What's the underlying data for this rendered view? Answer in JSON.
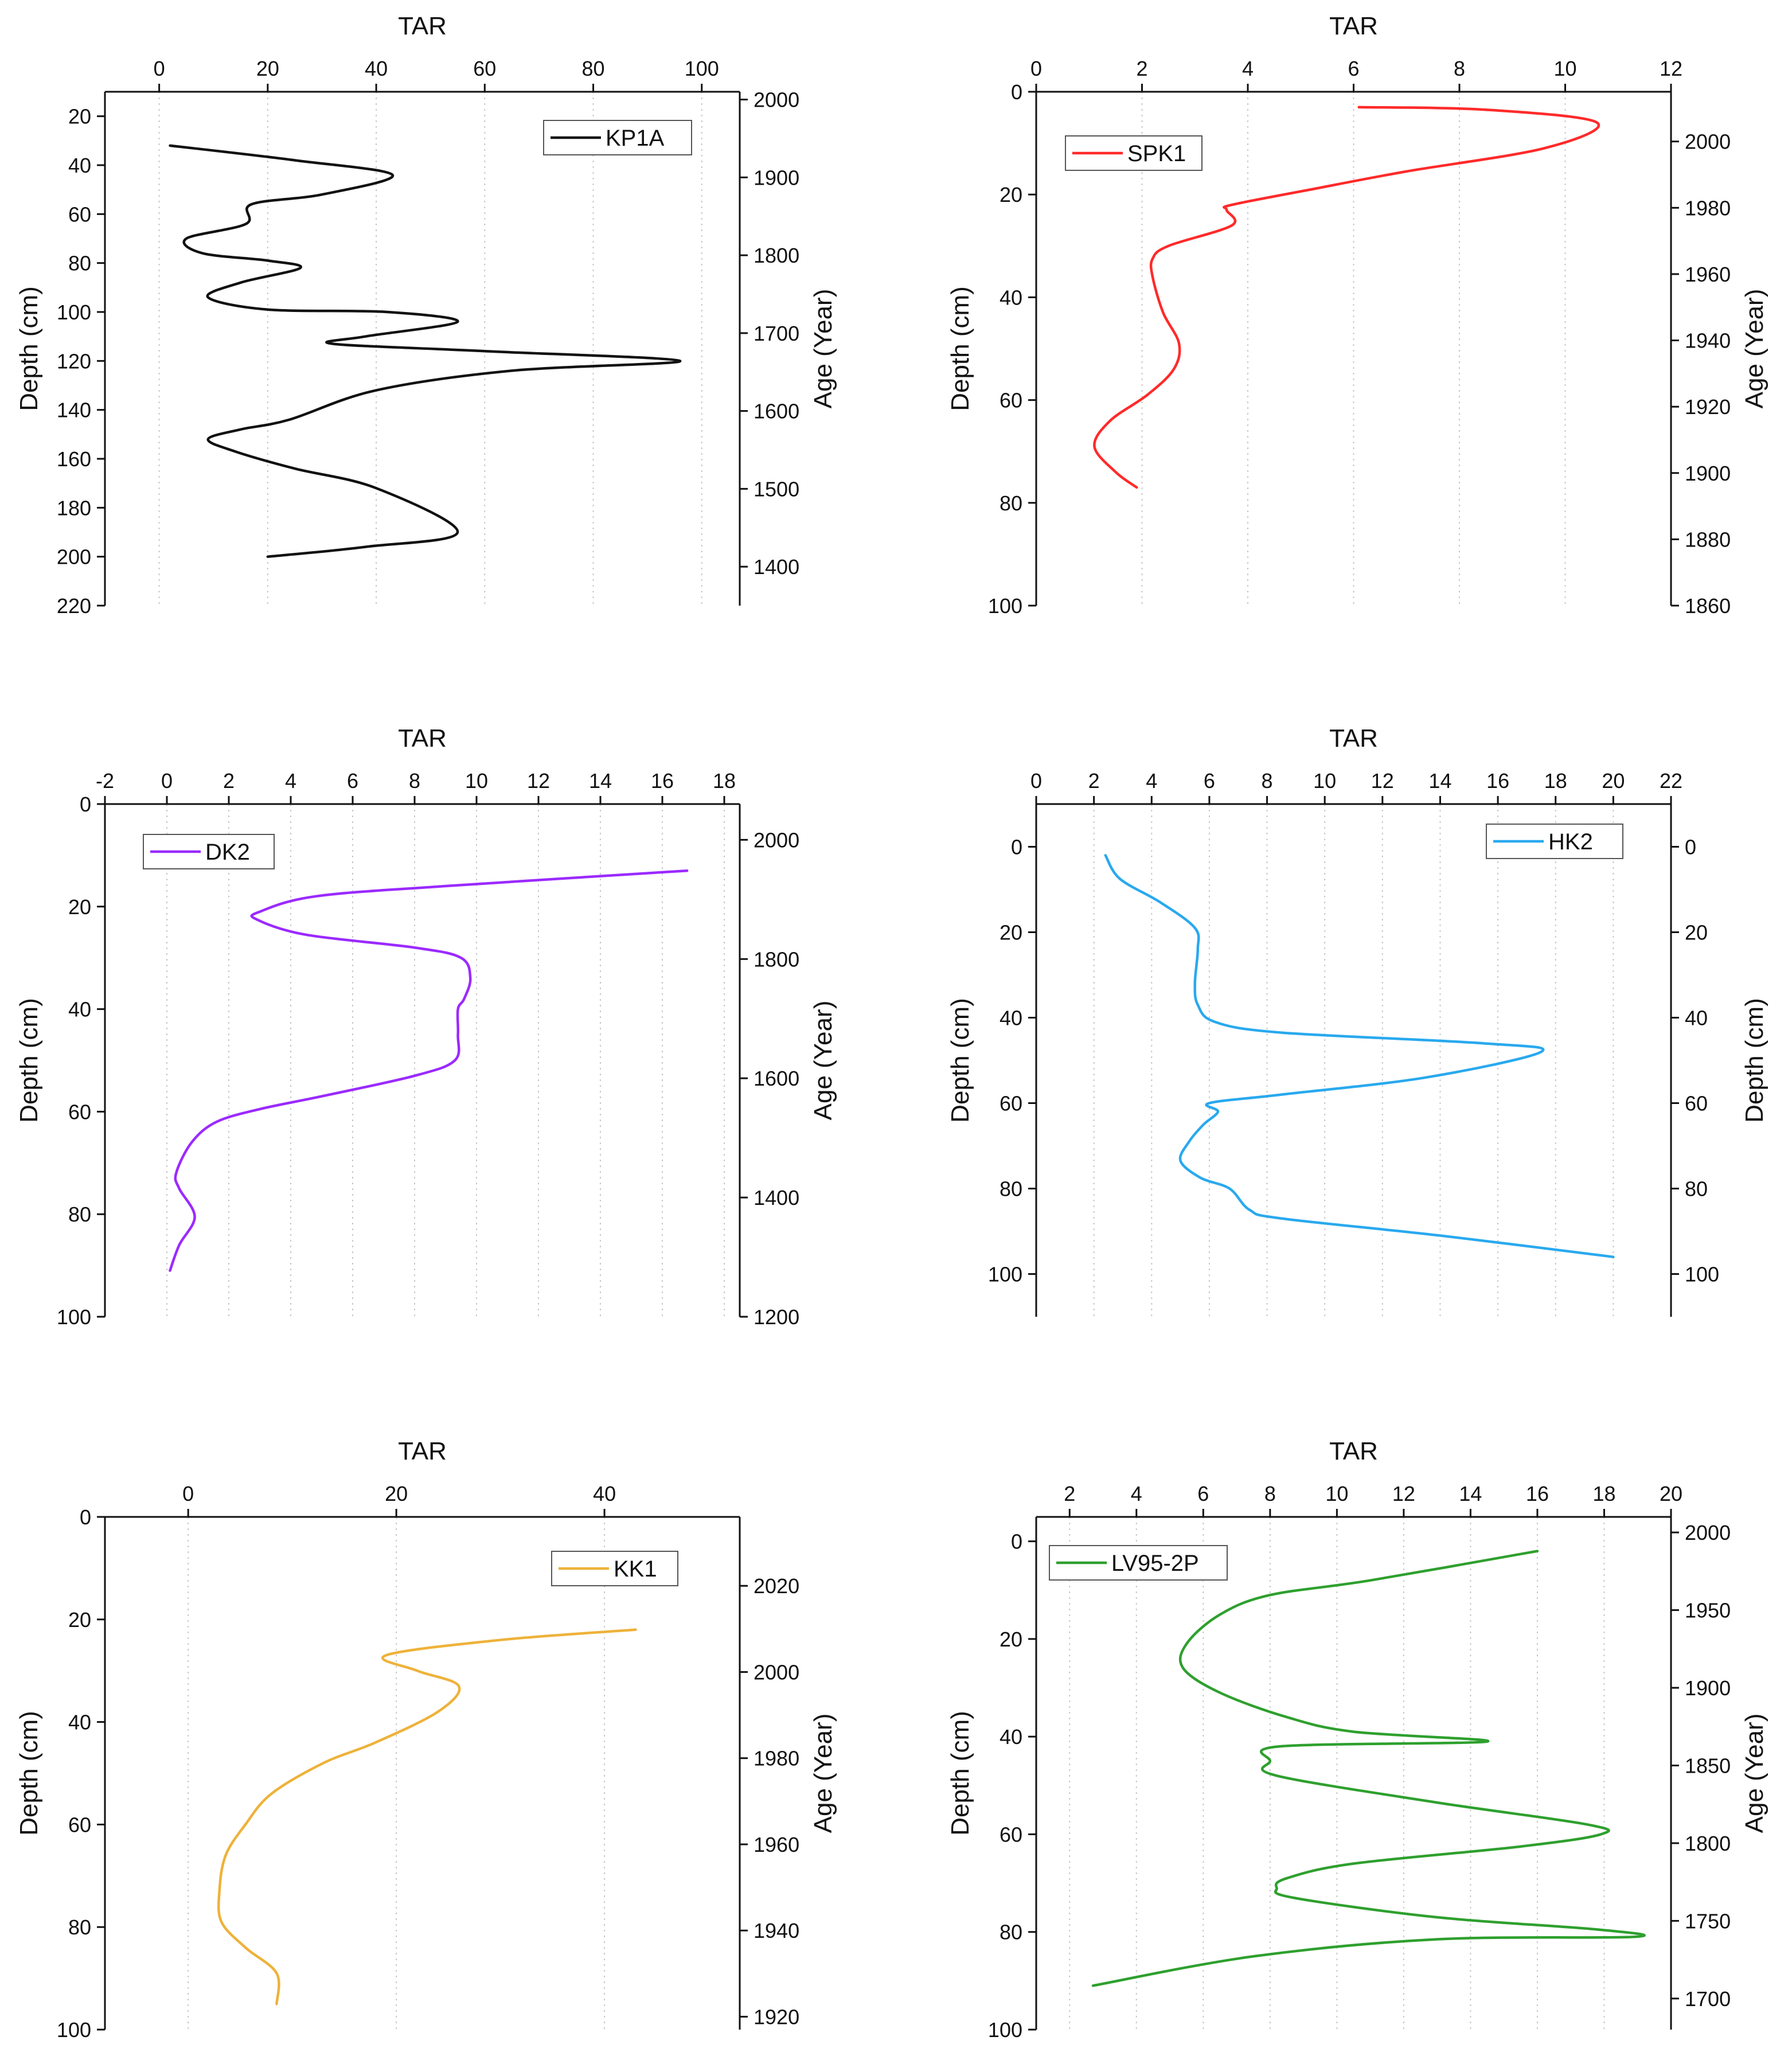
{
  "chart_data": [
    {
      "type": "line",
      "series_name": "KP1A",
      "color": "#111111",
      "xlabel": "TAR",
      "ylabel": "Depth (cm)",
      "y2label": "Age (Year)",
      "xlim": [
        -10,
        107
      ],
      "ylim": [
        220,
        10
      ],
      "xticks": [
        0,
        20,
        40,
        60,
        80,
        100
      ],
      "yticks": [
        20,
        40,
        60,
        80,
        100,
        120,
        140,
        160,
        180,
        200,
        220
      ],
      "y2lim": [
        1350,
        2010
      ],
      "y2ticks": [
        2000,
        1900,
        1800,
        1700,
        1600,
        1500,
        1400
      ],
      "x_label_decimals": 0,
      "legend": "top-right",
      "points": [
        [
          2,
          32
        ],
        [
          25,
          38
        ],
        [
          43,
          44
        ],
        [
          30,
          52
        ],
        [
          17,
          56
        ],
        [
          16,
          64
        ],
        [
          5,
          70
        ],
        [
          8,
          76
        ],
        [
          20,
          79
        ],
        [
          26,
          82
        ],
        [
          15,
          88
        ],
        [
          9,
          94
        ],
        [
          20,
          99
        ],
        [
          42,
          100
        ],
        [
          55,
          104
        ],
        [
          38,
          110
        ],
        [
          32,
          113
        ],
        [
          60,
          116
        ],
        [
          96,
          120
        ],
        [
          65,
          124
        ],
        [
          40,
          132
        ],
        [
          24,
          144
        ],
        [
          15,
          148
        ],
        [
          9,
          152
        ],
        [
          14,
          157
        ],
        [
          25,
          164
        ],
        [
          40,
          172
        ],
        [
          55,
          190
        ],
        [
          38,
          196
        ],
        [
          20,
          200
        ]
      ]
    },
    {
      "type": "line",
      "series_name": "SPK1",
      "color": "#ff2a2a",
      "xlabel": "TAR",
      "ylabel": "Depth (cm)",
      "y2label": "Age (Year)",
      "xlim": [
        0,
        12
      ],
      "ylim": [
        100,
        0
      ],
      "xticks": [
        0,
        2,
        4,
        6,
        8,
        10,
        12
      ],
      "yticks": [
        0,
        20,
        40,
        60,
        80,
        100
      ],
      "y2lim": [
        1860,
        2015
      ],
      "y2ticks": [
        2000,
        1980,
        1960,
        1940,
        1920,
        1900,
        1880,
        1860
      ],
      "x_label_decimals": 0,
      "legend": "top-left",
      "points": [
        [
          6.1,
          3
        ],
        [
          8.5,
          3.5
        ],
        [
          10.6,
          6
        ],
        [
          9.6,
          11
        ],
        [
          7,
          15.5
        ],
        [
          5.2,
          19
        ],
        [
          3.7,
          22
        ],
        [
          3.6,
          23
        ],
        [
          3.7,
          26
        ],
        [
          2.5,
          30
        ],
        [
          2.2,
          32.5
        ],
        [
          2.2,
          36
        ],
        [
          2.4,
          43
        ],
        [
          2.7,
          49
        ],
        [
          2.6,
          54
        ],
        [
          2.1,
          59
        ],
        [
          1.4,
          64
        ],
        [
          1.1,
          69
        ],
        [
          1.5,
          74
        ],
        [
          1.9,
          77
        ]
      ]
    },
    {
      "type": "line",
      "series_name": "DK2",
      "color": "#9b2aff",
      "xlabel": "TAR",
      "ylabel": "Depth (cm)",
      "y2label": "Age (Year)",
      "xlim": [
        -2,
        18.5
      ],
      "ylim": [
        100,
        0
      ],
      "xticks": [
        -2,
        0,
        2,
        4,
        6,
        8,
        10,
        12,
        14,
        16,
        18
      ],
      "yticks": [
        0,
        20,
        40,
        60,
        80,
        100
      ],
      "y2lim": [
        1200,
        2060
      ],
      "y2ticks": [
        2000,
        1800,
        1600,
        1400,
        1200
      ],
      "x_label_decimals": 0,
      "legend": "top-left",
      "points": [
        [
          16.8,
          13
        ],
        [
          9,
          16
        ],
        [
          4.8,
          18
        ],
        [
          3,
          21
        ],
        [
          2.9,
          22.5
        ],
        [
          4.5,
          25.5
        ],
        [
          8,
          28
        ],
        [
          9.5,
          30
        ],
        [
          9.8,
          34
        ],
        [
          9.6,
          38
        ],
        [
          9.4,
          40
        ],
        [
          9.4,
          45
        ],
        [
          9.3,
          50
        ],
        [
          8,
          53
        ],
        [
          5,
          57
        ],
        [
          3,
          59.5
        ],
        [
          1.6,
          62
        ],
        [
          0.8,
          66
        ],
        [
          0.3,
          72
        ],
        [
          0.4,
          75
        ],
        [
          0.9,
          80.5
        ],
        [
          0.4,
          86
        ],
        [
          0.1,
          91
        ]
      ]
    },
    {
      "type": "line",
      "series_name": "HK2",
      "color": "#29a9ee",
      "xlabel": "TAR",
      "ylabel": "Depth (cm)",
      "y2label": "Depth (cm)",
      "xlim": [
        0,
        22
      ],
      "ylim": [
        110,
        -10
      ],
      "xticks": [
        0,
        2,
        4,
        6,
        8,
        10,
        12,
        14,
        16,
        18,
        20,
        22
      ],
      "yticks": [
        0,
        20,
        40,
        60,
        80,
        100
      ],
      "y2lim": [
        110,
        -10
      ],
      "y2ticks": [
        0,
        20,
        40,
        60,
        80,
        100
      ],
      "x_label_decimals": 0,
      "legend": "top-right",
      "points": [
        [
          2.4,
          2
        ],
        [
          2.9,
          7.5
        ],
        [
          4.3,
          13
        ],
        [
          5.5,
          19
        ],
        [
          5.6,
          24
        ],
        [
          5.5,
          32
        ],
        [
          5.6,
          37
        ],
        [
          6.2,
          41
        ],
        [
          8.5,
          43.5
        ],
        [
          15.5,
          46
        ],
        [
          17.5,
          48
        ],
        [
          13.5,
          54
        ],
        [
          8.5,
          58
        ],
        [
          6,
          60
        ],
        [
          6.3,
          62
        ],
        [
          5.8,
          65
        ],
        [
          5.3,
          69
        ],
        [
          5,
          73.5
        ],
        [
          5.7,
          77.5
        ],
        [
          6.7,
          80
        ],
        [
          7.4,
          85
        ],
        [
          8.5,
          87
        ],
        [
          14,
          91
        ],
        [
          20,
          96
        ]
      ]
    },
    {
      "type": "line",
      "series_name": "KK1",
      "color": "#eeb23a",
      "xlabel": "TAR",
      "ylabel": "Depth (cm)",
      "y2label": "Age (Year)",
      "xlim": [
        -8,
        53
      ],
      "ylim": [
        100,
        0
      ],
      "xticks": [
        0,
        20,
        40
      ],
      "yticks": [
        0,
        20,
        40,
        60,
        80,
        100
      ],
      "y2lim": [
        1917,
        2036
      ],
      "y2ticks": [
        2020,
        2000,
        1980,
        1960,
        1940,
        1920
      ],
      "x_label_decimals": 0,
      "legend": "top-right",
      "points": [
        [
          43,
          22
        ],
        [
          30,
          24
        ],
        [
          19,
          27
        ],
        [
          22,
          30
        ],
        [
          26,
          33
        ],
        [
          24,
          38
        ],
        [
          18,
          44
        ],
        [
          13,
          48
        ],
        [
          8,
          54
        ],
        [
          5.5,
          60
        ],
        [
          3.6,
          66
        ],
        [
          3,
          73
        ],
        [
          3.2,
          79
        ],
        [
          5.5,
          84
        ],
        [
          8.5,
          89
        ],
        [
          8.5,
          95
        ]
      ]
    },
    {
      "type": "line",
      "series_name": "LV95-2P",
      "color": "#2ea02e",
      "xlabel": "TAR",
      "ylabel": "Depth (cm)",
      "y2label": "Age (Year)",
      "xlim": [
        1,
        20
      ],
      "ylim": [
        100,
        -5
      ],
      "xticks": [
        2,
        4,
        6,
        8,
        10,
        12,
        14,
        16,
        18,
        20
      ],
      "yticks": [
        0,
        20,
        40,
        60,
        80,
        100
      ],
      "y2lim": [
        1680,
        2010
      ],
      "y2ticks": [
        2000,
        1950,
        1900,
        1850,
        1800,
        1750,
        1700
      ],
      "x_label_decimals": 0,
      "legend": "top-left",
      "points": [
        [
          16,
          2
        ],
        [
          11,
          8
        ],
        [
          8,
          11
        ],
        [
          6.5,
          15
        ],
        [
          5.5,
          21
        ],
        [
          5.4,
          26
        ],
        [
          6.5,
          31
        ],
        [
          8.5,
          36
        ],
        [
          10.5,
          39
        ],
        [
          14.5,
          41
        ],
        [
          8.3,
          42
        ],
        [
          8,
          45
        ],
        [
          8.2,
          48
        ],
        [
          13,
          53.5
        ],
        [
          17.5,
          58
        ],
        [
          17.9,
          60
        ],
        [
          15.5,
          62.5
        ],
        [
          10.5,
          66
        ],
        [
          8.5,
          69
        ],
        [
          8.2,
          71
        ],
        [
          8.7,
          73
        ],
        [
          13,
          77
        ],
        [
          17.8,
          79.5
        ],
        [
          18.9,
          81
        ],
        [
          13,
          81.5
        ],
        [
          7.5,
          85
        ],
        [
          2.7,
          91
        ]
      ]
    }
  ]
}
